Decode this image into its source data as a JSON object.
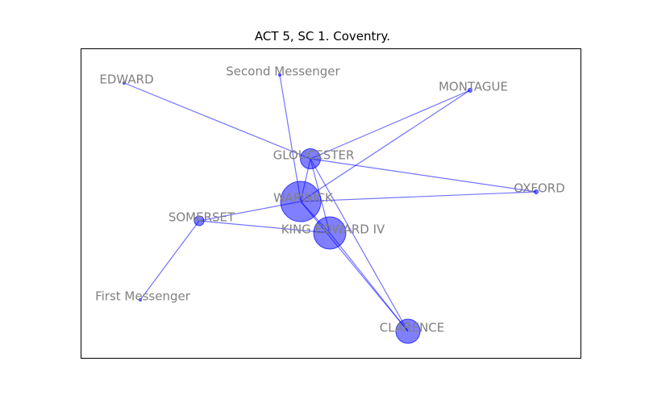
{
  "title": "ACT 5, SC 1. Coventry.",
  "colors": {
    "node": "#0000ff",
    "edge": "#0000ff",
    "label": "#808080",
    "frame": "#000000"
  },
  "nodes": [
    {
      "id": "WARWICK",
      "label": "WARWICK",
      "size": 5
    },
    {
      "id": "KING EDWARD IV",
      "label": "KING EDWARD IV",
      "size": 4
    },
    {
      "id": "CLARENCE",
      "label": "CLARENCE",
      "size": 3
    },
    {
      "id": "GLOUCESTER",
      "label": "GLOUCESTER",
      "size": 2.5
    },
    {
      "id": "SOMERSET",
      "label": "SOMERSET",
      "size": 1.2
    },
    {
      "id": "EDWARD",
      "label": "EDWARD",
      "size": 0.3
    },
    {
      "id": "Second Messenger",
      "label": "Second Messenger",
      "size": 0.3
    },
    {
      "id": "MONTAGUE",
      "label": "MONTAGUE",
      "size": 0.5
    },
    {
      "id": "OXFORD",
      "label": "OXFORD",
      "size": 0.5
    },
    {
      "id": "First Messenger",
      "label": "First Messenger",
      "size": 0.3
    }
  ],
  "edges": [
    [
      "WARWICK",
      "KING EDWARD IV"
    ],
    [
      "WARWICK",
      "CLARENCE"
    ],
    [
      "WARWICK",
      "GLOUCESTER"
    ],
    [
      "WARWICK",
      "SOMERSET"
    ],
    [
      "WARWICK",
      "OXFORD"
    ],
    [
      "WARWICK",
      "MONTAGUE"
    ],
    [
      "WARWICK",
      "Second Messenger"
    ],
    [
      "KING EDWARD IV",
      "CLARENCE"
    ],
    [
      "KING EDWARD IV",
      "SOMERSET"
    ],
    [
      "KING EDWARD IV",
      "GLOUCESTER"
    ],
    [
      "GLOUCESTER",
      "CLARENCE"
    ],
    [
      "GLOUCESTER",
      "EDWARD"
    ],
    [
      "GLOUCESTER",
      "OXFORD"
    ],
    [
      "GLOUCESTER",
      "MONTAGUE"
    ],
    [
      "SOMERSET",
      "First Messenger"
    ]
  ]
}
